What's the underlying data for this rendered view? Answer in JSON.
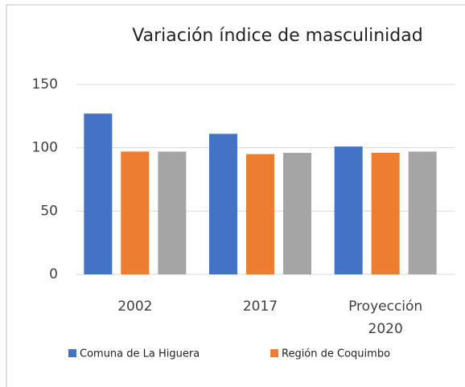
{
  "chart_data": {
    "type": "bar",
    "title": "Variación índice de masculinidad",
    "categories": [
      "2002",
      "2017",
      "Proyección 2020"
    ],
    "series": [
      {
        "name": "Comuna de La Higuera",
        "color": "#4472c4",
        "values": [
          127,
          111,
          101
        ]
      },
      {
        "name": "Región de Coquimbo",
        "color": "#ed7d31",
        "values": [
          97,
          95,
          96
        ]
      },
      {
        "color": "#a5a5a5",
        "values": [
          97,
          96,
          97
        ]
      }
    ],
    "ylim": [
      0,
      150
    ],
    "yticks": [
      0,
      50,
      100,
      150
    ],
    "grid": true,
    "legend": "bottom"
  }
}
